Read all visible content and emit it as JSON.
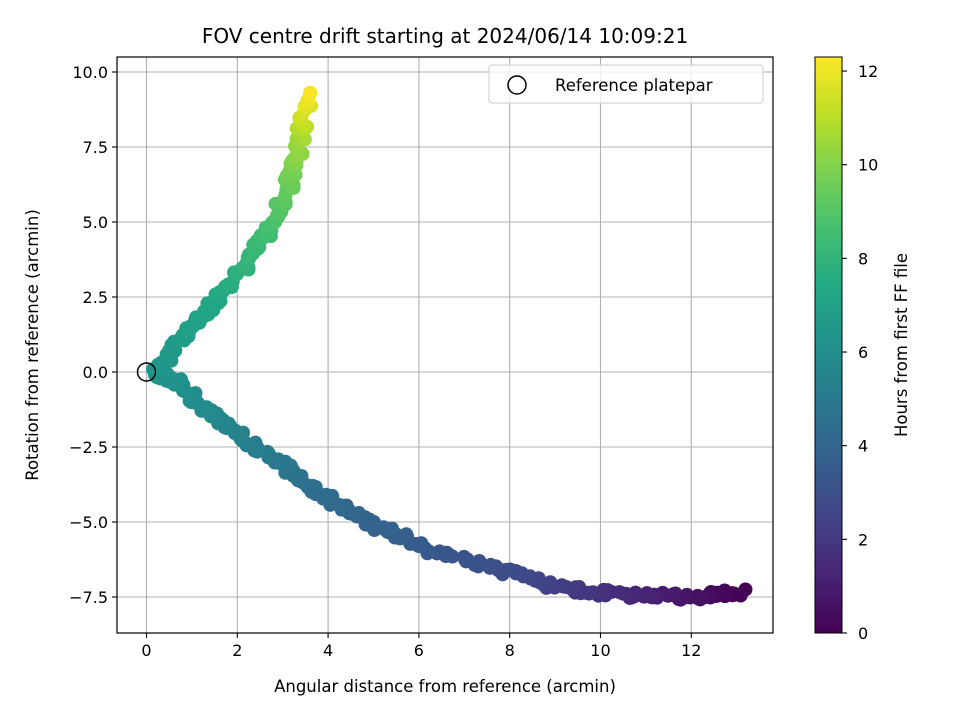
{
  "chart_data": {
    "type": "scatter",
    "title": "FOV centre drift starting at 2024/06/14 10:09:21",
    "xlabel": "Angular distance from reference (arcmin)",
    "ylabel": "Rotation from reference (arcmin)",
    "xlim": [
      -0.65,
      13.8
    ],
    "ylim": [
      -8.7,
      10.5
    ],
    "xticks": [
      0,
      2,
      4,
      6,
      8,
      10,
      12
    ],
    "yticks": [
      -7.5,
      -5.0,
      -2.5,
      0.0,
      2.5,
      5.0,
      7.5,
      10.0
    ],
    "xtick_labels": [
      "0",
      "2",
      "4",
      "6",
      "8",
      "10",
      "12"
    ],
    "ytick_labels": [
      "−7.5",
      "−5.0",
      "−2.5",
      "0.0",
      "2.5",
      "5.0",
      "7.5",
      "10.0"
    ],
    "grid": true,
    "legend": {
      "position": "top-right",
      "entries": [
        {
          "label": "Reference platepar",
          "marker": "open-circle"
        }
      ]
    },
    "reference_point": {
      "x": 0,
      "y": 0
    },
    "colorbar": {
      "label": "Hours from first FF file",
      "colormap": "viridis",
      "range": [
        0,
        12.3
      ],
      "ticks": [
        0,
        2,
        4,
        6,
        8,
        10,
        12
      ],
      "tick_labels": [
        "0",
        "2",
        "4",
        "6",
        "8",
        "10",
        "12"
      ]
    },
    "track_waypoints": [
      {
        "x": 13.1,
        "y": -7.35,
        "hours": 0.0
      },
      {
        "x": 12.0,
        "y": -7.5,
        "hours": 0.6
      },
      {
        "x": 10.6,
        "y": -7.45,
        "hours": 1.4
      },
      {
        "x": 9.2,
        "y": -7.2,
        "hours": 2.2
      },
      {
        "x": 7.8,
        "y": -6.6,
        "hours": 2.9
      },
      {
        "x": 6.3,
        "y": -5.95,
        "hours": 3.4
      },
      {
        "x": 5.0,
        "y": -5.1,
        "hours": 3.9
      },
      {
        "x": 3.8,
        "y": -4.0,
        "hours": 4.4
      },
      {
        "x": 2.9,
        "y": -3.0,
        "hours": 4.9
      },
      {
        "x": 2.0,
        "y": -2.0,
        "hours": 5.4
      },
      {
        "x": 1.3,
        "y": -1.3,
        "hours": 5.8
      },
      {
        "x": 0.7,
        "y": -0.4,
        "hours": 6.1
      },
      {
        "x": 0.2,
        "y": 0.0,
        "hours": 6.3
      },
      {
        "x": 0.6,
        "y": 0.8,
        "hours": 6.6
      },
      {
        "x": 1.2,
        "y": 1.8,
        "hours": 7.0
      },
      {
        "x": 1.9,
        "y": 3.0,
        "hours": 7.6
      },
      {
        "x": 2.6,
        "y": 4.5,
        "hours": 8.4
      },
      {
        "x": 3.1,
        "y": 6.0,
        "hours": 9.3
      },
      {
        "x": 3.35,
        "y": 7.5,
        "hours": 10.3
      },
      {
        "x": 3.6,
        "y": 9.3,
        "hours": 12.2
      }
    ],
    "points_per_segment": 20,
    "scatter_spread": 0.12
  }
}
